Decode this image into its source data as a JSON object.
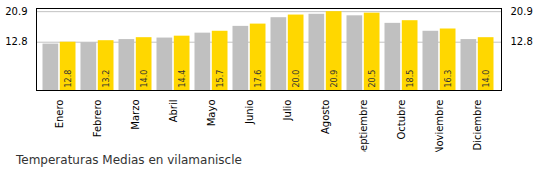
{
  "chart_data": {
    "type": "bar",
    "title": "Temperaturas Medias en vilamaniscle",
    "categories": [
      "Enero",
      "Febrero",
      "Marzo",
      "Abril",
      "Mayo",
      "Junio",
      "Julio",
      "Agosto",
      "Septiembre",
      "Octubre",
      "Noviembre",
      "Diciembre"
    ],
    "series": [
      {
        "color": "#C0C0C0",
        "values": [
          12.3,
          12.7,
          13.5,
          13.9,
          15.2,
          17.0,
          19.3,
          20.2,
          19.8,
          17.8,
          15.7,
          13.5
        ]
      },
      {
        "color": "#FFD700",
        "values": [
          12.8,
          13.2,
          14.0,
          14.4,
          15.7,
          17.6,
          20.0,
          20.9,
          20.5,
          18.5,
          16.3,
          14.0
        ],
        "value_labels": [
          "12.8",
          "13.2",
          "14.0",
          "14.4",
          "15.7",
          "17.6",
          "20.0",
          "20.9",
          "20.5",
          "18.5",
          "16.3",
          "14.0"
        ]
      }
    ],
    "ylim": [
      0,
      21.736
    ],
    "yticks": [
      12.8,
      20.9
    ],
    "grid": true,
    "data_labels": true
  }
}
